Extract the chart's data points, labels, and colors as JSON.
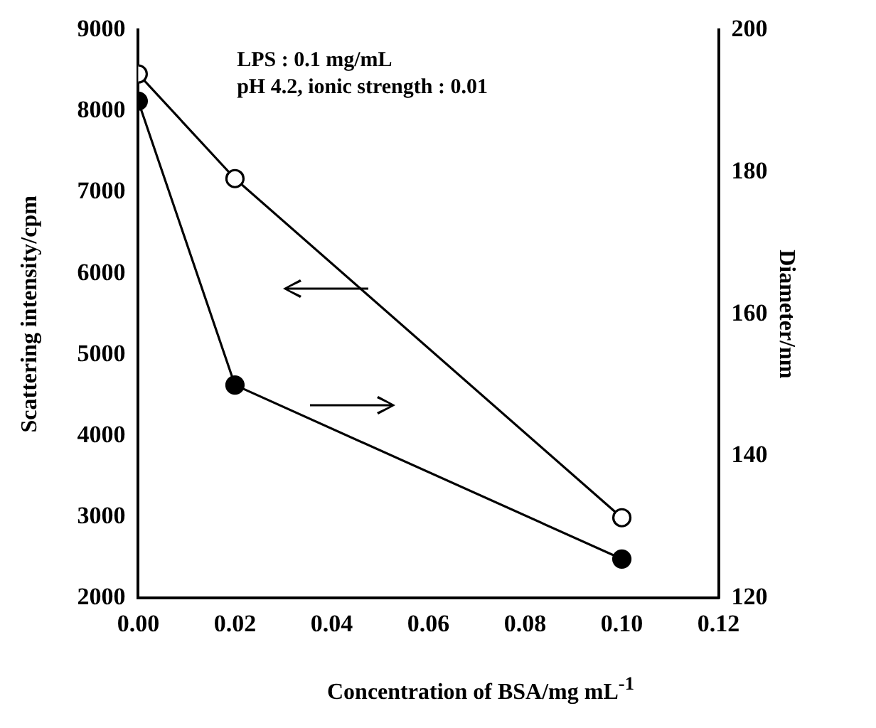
{
  "chart_data": {
    "type": "line",
    "xlabel": "Concentration of BSA/mg mL$^{-1}$",
    "ylabel": "Scattering intensity/cpm",
    "y2label": "Diameter/nm",
    "x": [
      0,
      0.02,
      0.1
    ],
    "series": [
      {
        "color": "#000000",
        "values": [
          8460,
          7170,
          2990
        ],
        "marker": "circle"
      },
      {
        "color": "#000000",
        "values": [
          190,
          150,
          125.5
        ],
        "axis": "y2",
        "marker": "circle"
      }
    ],
    "xlim": [
      0,
      0.12
    ],
    "xticks": [
      {
        "value": 0,
        "label": "0.00"
      },
      {
        "value": 0.02,
        "label": "0.02"
      },
      {
        "value": 0.04,
        "label": "0.04"
      },
      {
        "value": 0.06,
        "label": "0.06"
      },
      {
        "value": 0.08,
        "label": "0.08"
      },
      {
        "value": 0.1,
        "label": "0.10"
      },
      {
        "value": 0.12,
        "label": "0.12"
      }
    ],
    "ylim": [
      2000,
      9000
    ],
    "yticks": [
      2000,
      3000,
      4000,
      5000,
      6000,
      7000,
      8000,
      9000
    ],
    "y2lim": [
      120,
      200
    ],
    "y2ticks": [
      120,
      140,
      160,
      180,
      200
    ],
    "annotations": [
      "LPS : 0.1 mg/mL",
      "pH 4.2, ionic strength : 0.01"
    ],
    "grid": false,
    "legend": false,
    "line_style": "solid"
  }
}
